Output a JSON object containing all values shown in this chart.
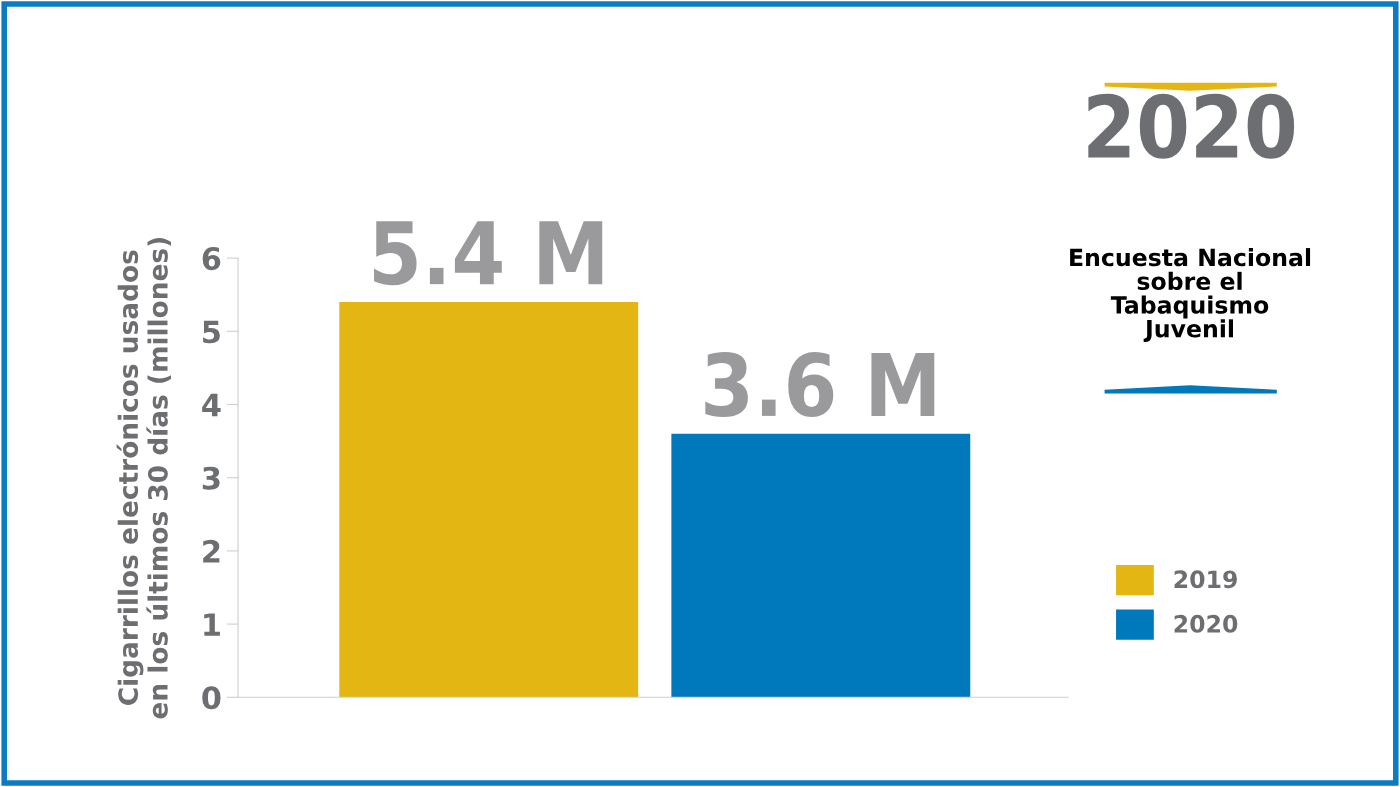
{
  "chart_data": {
    "type": "bar",
    "title": "2020",
    "subtitle": "Encuesta Nacional\nsobre el\nTabaquismo\nJuvenil",
    "ylabel": "Cigarrillos electrónicos usados\nen los últimos 30 días (millones)",
    "categories": [
      null
    ],
    "series": [
      {
        "name": "2019",
        "color": "#e3b614",
        "values": [
          5.4
        ],
        "value_labels": [
          "5.4 M"
        ]
      },
      {
        "name": "2020",
        "color": "#0079bc",
        "values": [
          3.6
        ],
        "value_labels": [
          "3.6 M"
        ]
      }
    ],
    "ylim": [
      0,
      6
    ],
    "yticks": [
      0,
      1,
      2,
      3,
      4,
      5,
      6
    ],
    "tick_labels": "y",
    "grid": false,
    "legend": "right"
  }
}
